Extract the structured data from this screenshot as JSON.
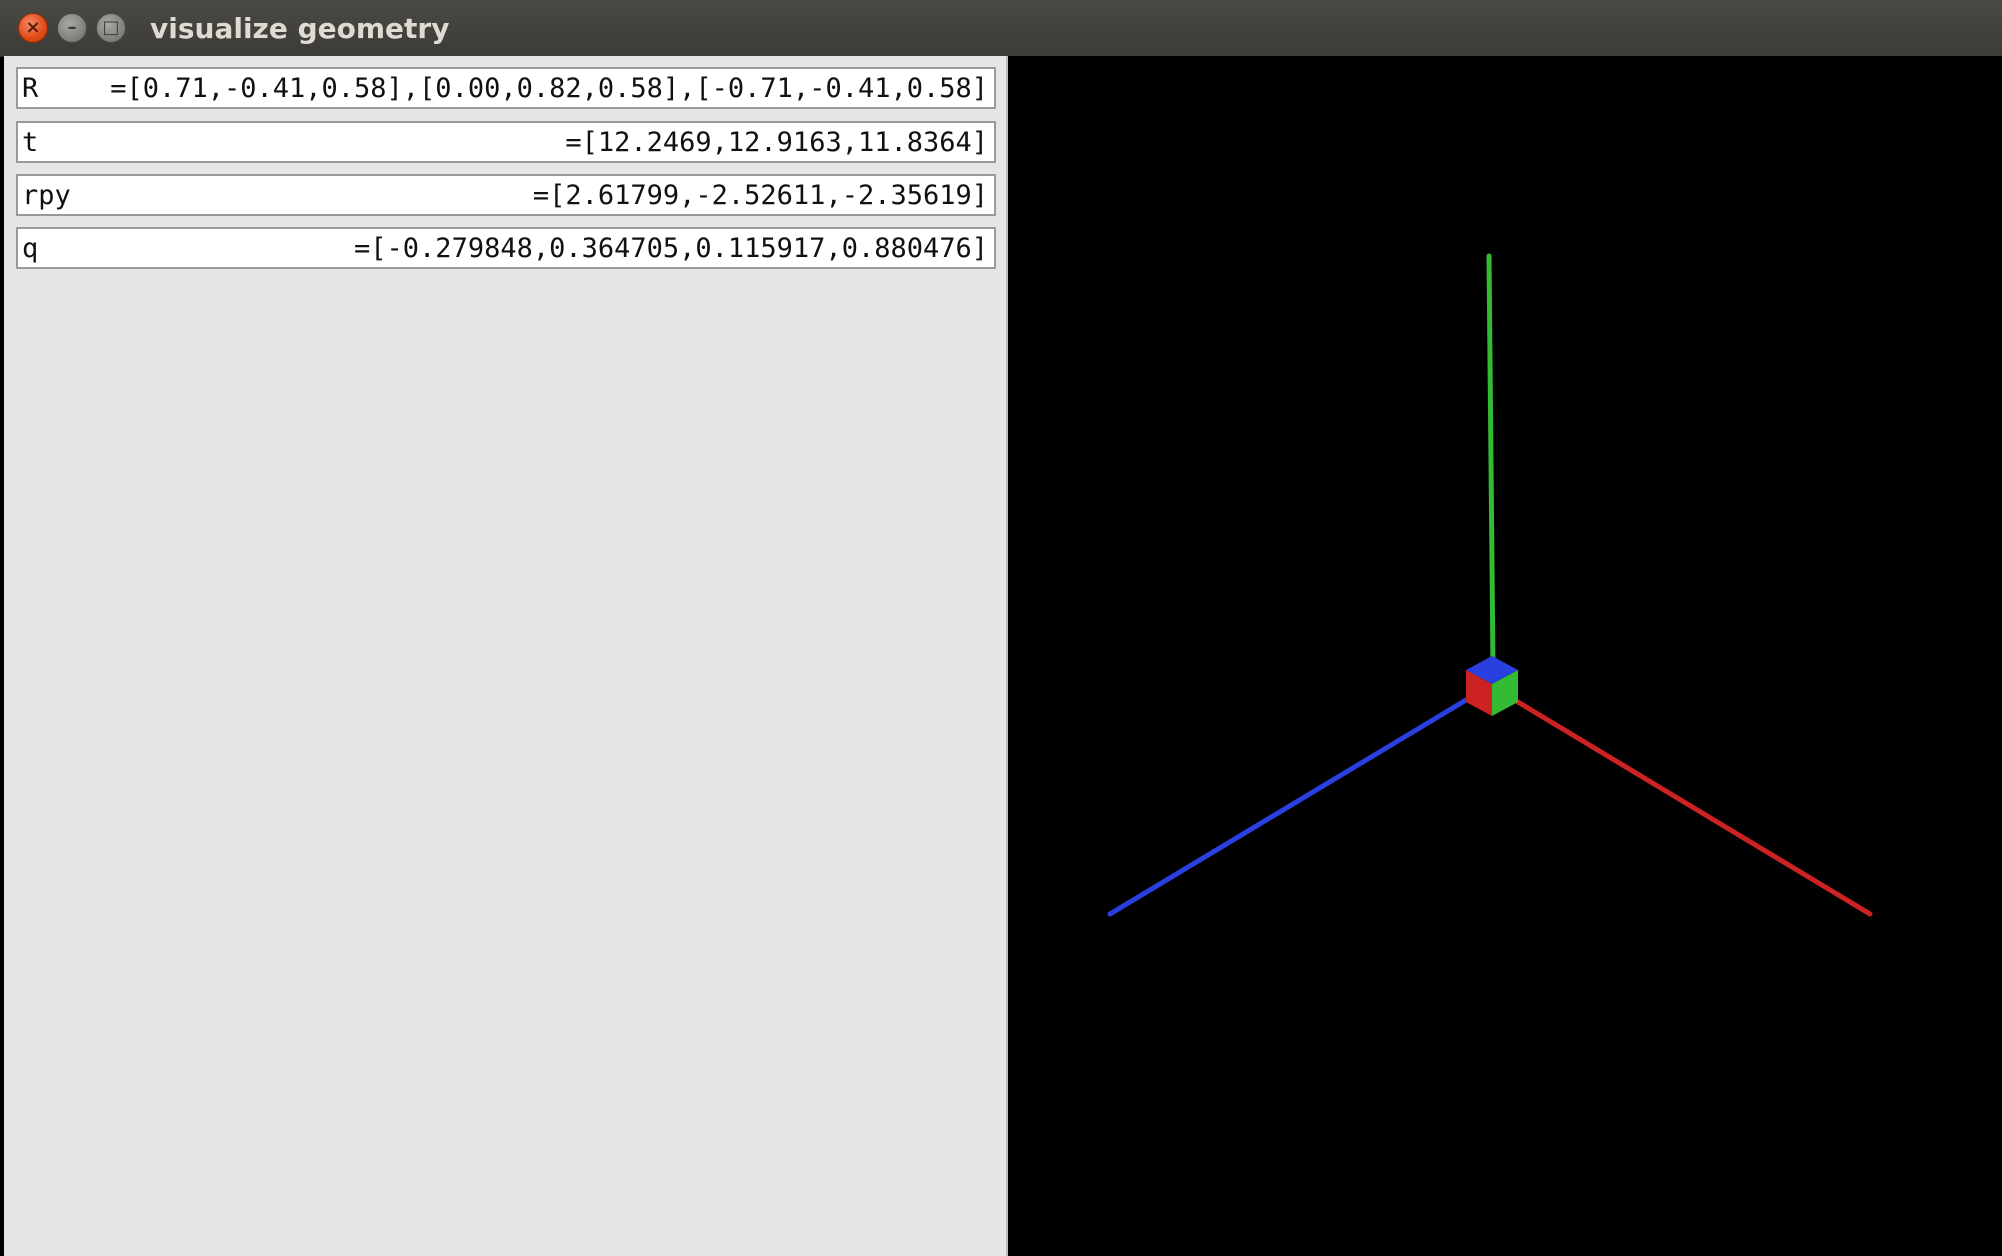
{
  "window": {
    "title": "visualize geometry",
    "controls": {
      "close_glyph": "×",
      "minimize_glyph": "–",
      "maximize_glyph": "□"
    }
  },
  "fields": {
    "R": {
      "label": "R",
      "value": "=[0.71,-0.41,0.58],[0.00,0.82,0.58],[-0.71,-0.41,0.58]"
    },
    "t": {
      "label": "t",
      "value": "=[12.2469,12.9163,11.8364]"
    },
    "rpy": {
      "label": "rpy",
      "value": "=[2.61799,-2.52611,-2.35619]"
    },
    "q": {
      "label": "q",
      "value": "=[-0.279848,0.364705,0.115917,0.880476]"
    }
  },
  "viewport": {
    "background": "#000000",
    "axis_colors": {
      "x": "#cc2222",
      "y": "#33bb33",
      "z": "#2a3fe0"
    }
  }
}
